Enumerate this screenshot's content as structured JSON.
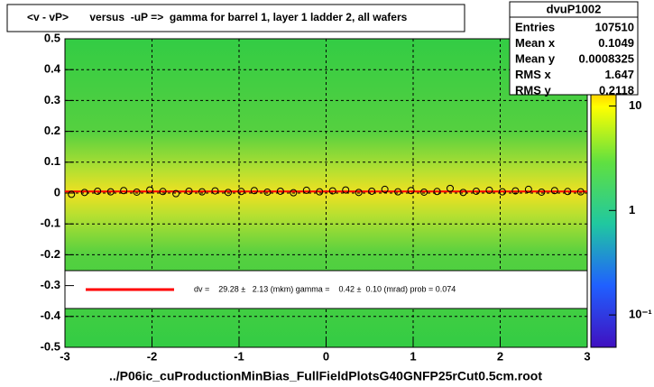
{
  "chart_data": {
    "type": "scatter",
    "title": "<v - vP>       versus  -uP =>  gamma for barrel 1, layer 1 ladder 2, all wafers",
    "x_label": "../P06ic_cuProductionMinBias_FullFieldPlotsG40GNFP25rCut0.5cm.root",
    "xlim": [
      -3,
      3
    ],
    "ylim": [
      -0.5,
      0.5
    ],
    "xticks": [
      -3,
      -2,
      -1,
      0,
      1,
      2,
      3
    ],
    "yticks": [
      -0.5,
      -0.4,
      -0.3,
      -0.2,
      -0.1,
      0,
      0.1,
      0.2,
      0.3,
      0.4,
      0.5
    ],
    "grid": true,
    "series": [
      {
        "color": "#000000",
        "x": [
          -2.925,
          -2.775,
          -2.625,
          -2.475,
          -2.325,
          -2.175,
          -2.025,
          -1.875,
          -1.725,
          -1.575,
          -1.425,
          -1.275,
          -1.125,
          -0.975,
          -0.825,
          -0.675,
          -0.525,
          -0.375,
          -0.225,
          -0.075,
          0.075,
          0.225,
          0.375,
          0.525,
          0.675,
          0.825,
          0.975,
          1.125,
          1.275,
          1.425,
          1.575,
          1.725,
          1.875,
          2.025,
          2.175,
          2.325,
          2.475,
          2.625,
          2.775,
          2.925
        ],
        "values": [
          -0.004,
          0.002,
          0.006,
          0.004,
          0.008,
          0.003,
          0.01,
          0.005,
          -0.002,
          0.006,
          0.004,
          0.007,
          0.002,
          0.005,
          0.008,
          0.003,
          0.006,
          0.001,
          0.009,
          0.004,
          0.007,
          0.01,
          0.002,
          0.006,
          0.012,
          0.004,
          0.008,
          0.003,
          0.005,
          0.015,
          0.002,
          0.006,
          0.009,
          0.004,
          0.007,
          0.012,
          0.003,
          0.008,
          0.005,
          0.004
        ]
      }
    ],
    "fit": {
      "color": "#ff0000",
      "x": [
        -3,
        3
      ],
      "values": [
        0.005,
        0.005
      ]
    },
    "fit_text": "dv =    29.28 ±   2.13 (mkm) gamma =    0.42 ±  0.10 (mrad) prob = 0.074",
    "stats": {
      "title": "dvuP1002",
      "rows": [
        [
          "Entries",
          107510
        ],
        [
          "Mean x",
          0.1049
        ],
        [
          "Mean y",
          0.0008325
        ],
        [
          "RMS x",
          1.647
        ],
        [
          "RMS y",
          0.2118
        ]
      ]
    },
    "zscale": "log",
    "zlim": [
      0.049,
      44
    ],
    "zticks": [
      {
        "value": 0.1,
        "label": "10⁻¹"
      },
      1,
      10
    ]
  }
}
